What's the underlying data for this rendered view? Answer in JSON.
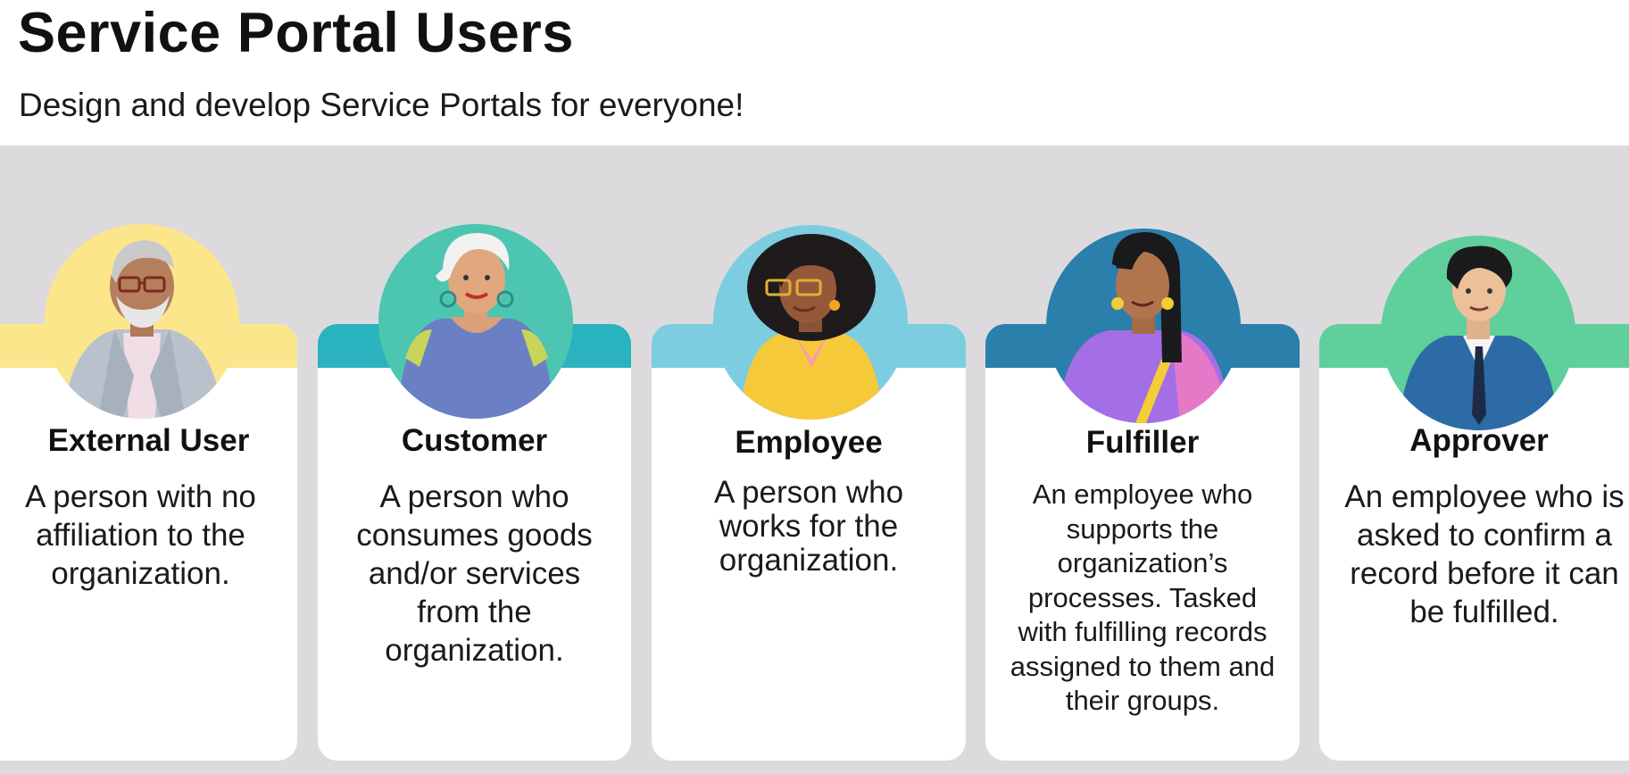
{
  "header": {
    "title": "Service Portal Users",
    "subtitle": "Design and develop Service Portals for everyone!"
  },
  "colors": {
    "band": "#dcdadd",
    "external_user": "#fce68c",
    "customer": "#2ab3bf",
    "employee": "#7dcde0",
    "fulfiller": "#2a7fab",
    "approver": "#5fcf9b"
  },
  "cards": [
    {
      "title": "External User",
      "description": "A person with no affiliation to the organization.",
      "icon": "older-man-with-glasses-avatar"
    },
    {
      "title": "Customer",
      "description": "A person who consumes goods and/or services from the organization.",
      "icon": "woman-with-white-hair-avatar"
    },
    {
      "title": "Employee",
      "description": "A person who works for the organization.",
      "icon": "woman-with-curly-hair-avatar"
    },
    {
      "title": "Fulfiller",
      "description": "An employee who supports the organization’s processes. Tasked with fulfilling records assigned to them and their groups.",
      "icon": "woman-with-long-hair-avatar"
    },
    {
      "title": "Approver",
      "description": "An employee who is asked to confirm a record before it can be fulfilled.",
      "icon": "man-in-suit-avatar"
    }
  ]
}
